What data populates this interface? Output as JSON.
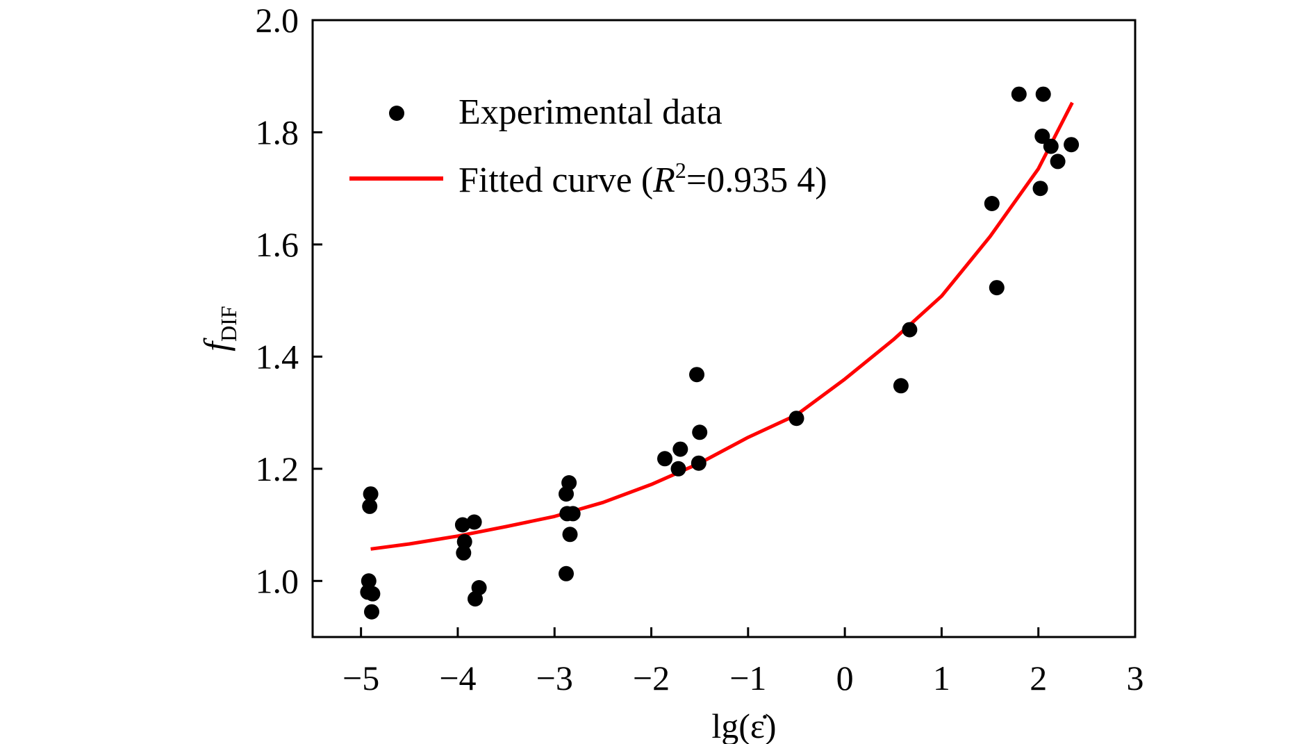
{
  "chart_data": {
    "type": "scatter",
    "xlabel": "lg(ε̇)",
    "ylabel": "f",
    "ylabel_subscript": "DIF",
    "xlim": [
      -5.5,
      3
    ],
    "ylim": [
      0.9,
      2.0
    ],
    "x_ticks": [
      -5,
      -4,
      -3,
      -2,
      -1,
      0,
      1,
      2,
      3
    ],
    "x_tick_labels": [
      "−5",
      "−4",
      "−3",
      "−2",
      "−1",
      "0",
      "1",
      "2",
      "3"
    ],
    "y_ticks": [
      1.0,
      1.2,
      1.4,
      1.6,
      1.8,
      2.0
    ],
    "y_tick_labels": [
      "1.0",
      "1.2",
      "1.4",
      "1.6",
      "1.8",
      "2.0"
    ],
    "grid": false,
    "legend_position": "top-left",
    "legend": [
      {
        "marker": "dot",
        "color": "#000000",
        "label": "Experimental data"
      },
      {
        "marker": "line",
        "color": "#ff0000",
        "label_prefix": "Fitted curve (",
        "label_italic": "R",
        "label_sup": "2",
        "label_suffix": "=0.935 4)"
      }
    ],
    "series": [
      {
        "name": "Experimental data",
        "kind": "scatter",
        "color": "#000000",
        "points": [
          [
            -4.9,
            1.155
          ],
          [
            -4.91,
            1.133
          ],
          [
            -4.92,
            1.0
          ],
          [
            -4.93,
            0.98
          ],
          [
            -4.88,
            0.977
          ],
          [
            -4.89,
            0.945
          ],
          [
            -3.95,
            1.1
          ],
          [
            -3.83,
            1.105
          ],
          [
            -3.93,
            1.07
          ],
          [
            -3.94,
            1.05
          ],
          [
            -3.78,
            0.988
          ],
          [
            -3.82,
            0.968
          ],
          [
            -2.85,
            1.175
          ],
          [
            -2.88,
            1.155
          ],
          [
            -2.87,
            1.12
          ],
          [
            -2.81,
            1.12
          ],
          [
            -2.84,
            1.083
          ],
          [
            -2.88,
            1.013
          ],
          [
            -1.86,
            1.218
          ],
          [
            -1.7,
            1.235
          ],
          [
            -1.72,
            1.2
          ],
          [
            -1.53,
            1.368
          ],
          [
            -1.5,
            1.265
          ],
          [
            -1.51,
            1.21
          ],
          [
            -0.5,
            1.29
          ],
          [
            0.58,
            1.348
          ],
          [
            0.67,
            1.448
          ],
          [
            1.52,
            1.673
          ],
          [
            1.57,
            1.523
          ],
          [
            1.8,
            1.868
          ],
          [
            2.05,
            1.868
          ],
          [
            2.04,
            1.793
          ],
          [
            2.13,
            1.775
          ],
          [
            2.02,
            1.7
          ],
          [
            2.2,
            1.748
          ],
          [
            2.34,
            1.778
          ]
        ]
      },
      {
        "name": "Fitted curve",
        "kind": "line",
        "color": "#ff0000",
        "points": [
          [
            -4.9,
            1.057
          ],
          [
            -4.5,
            1.066
          ],
          [
            -4.0,
            1.08
          ],
          [
            -3.5,
            1.097
          ],
          [
            -3.0,
            1.115
          ],
          [
            -2.5,
            1.14
          ],
          [
            -2.0,
            1.172
          ],
          [
            -1.5,
            1.21
          ],
          [
            -1.0,
            1.256
          ],
          [
            -0.5,
            1.296
          ],
          [
            0.0,
            1.36
          ],
          [
            0.5,
            1.43
          ],
          [
            1.0,
            1.508
          ],
          [
            1.5,
            1.614
          ],
          [
            2.0,
            1.735
          ],
          [
            2.35,
            1.853
          ]
        ]
      }
    ]
  }
}
